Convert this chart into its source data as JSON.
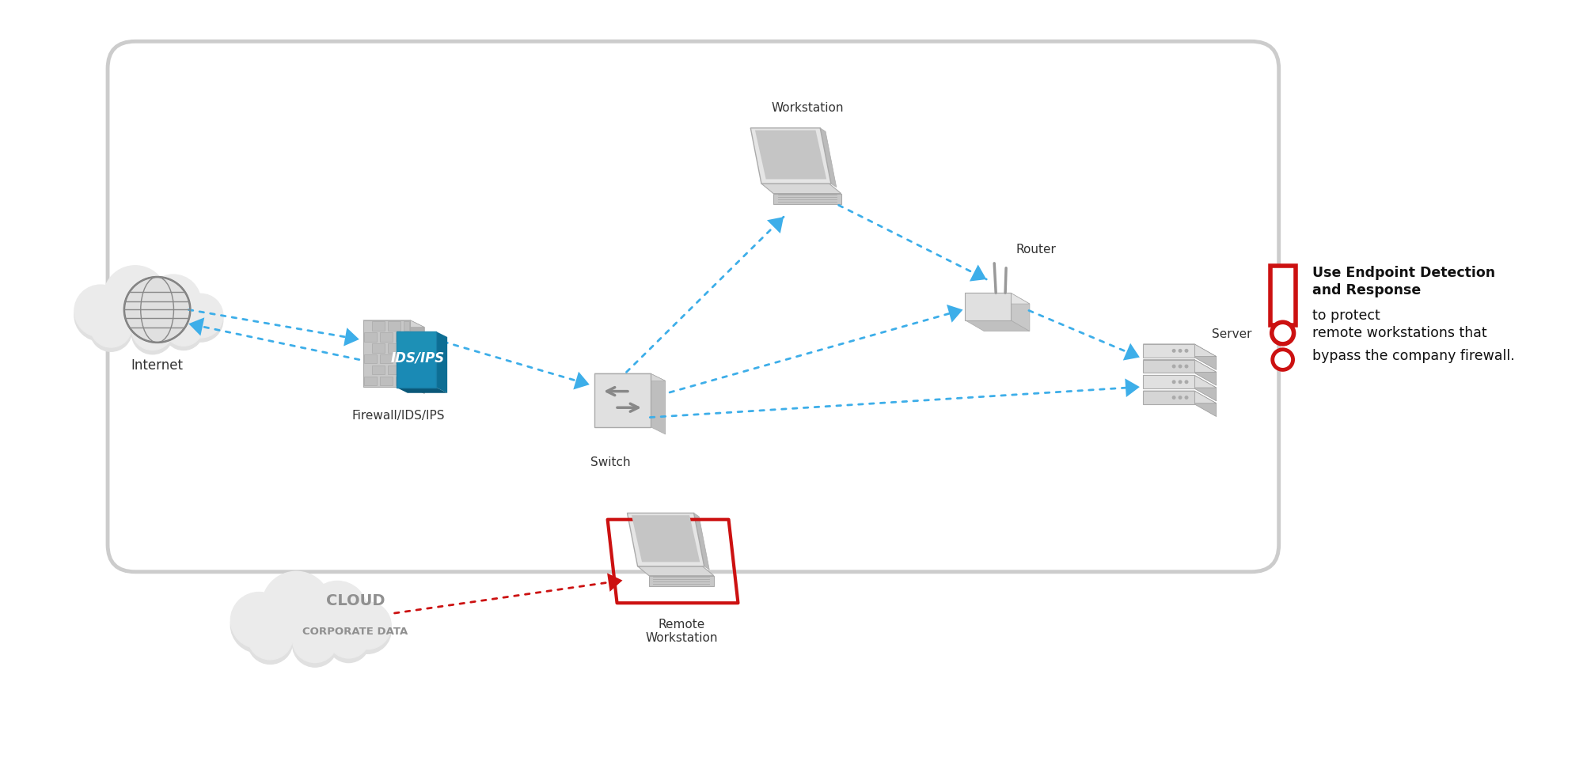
{
  "bg_color": "#ffffff",
  "blue": "#3daee9",
  "red": "#cc1111",
  "fw_blue_top": "#2196b8",
  "fw_blue_mid": "#1a8ab5",
  "fw_blue_bot": "#0d6e94",
  "gray_light": "#e8e8e8",
  "gray_mid": "#d0d0d0",
  "gray_dark": "#b0b0b0",
  "gray_shadow": "#c0c0c0",
  "text_dark": "#333333",
  "text_gray": "#888888",
  "border_gray": "#cccccc",
  "labels": {
    "internet": "Internet",
    "firewall": "Firewall/IDS/IPS",
    "switch": "Switch",
    "workstation": "Workstation",
    "router": "Router",
    "server": "Server",
    "cloud_line1": "CLOUD",
    "cloud_line2": "CORPORATE DATA",
    "remote": "Remote\nWorkstation"
  },
  "annotation_bold": "Use Endpoint Detection\nand Response",
  "annotation_normal": " to protect\nremote workstations that\nbypass the company firewall."
}
